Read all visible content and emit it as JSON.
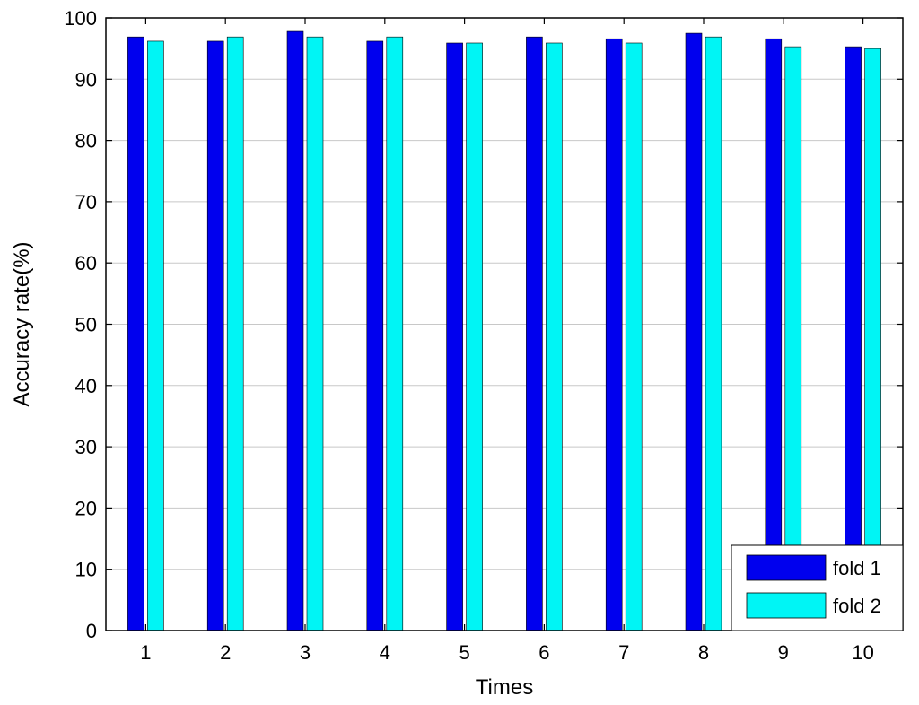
{
  "chart_data": {
    "type": "bar",
    "xlabel": "Times",
    "ylabel": "Accuracy rate(%)",
    "categories": [
      "1",
      "2",
      "3",
      "4",
      "5",
      "6",
      "7",
      "8",
      "9",
      "10"
    ],
    "ylim": [
      0,
      100
    ],
    "yticks": [
      "0",
      "10",
      "20",
      "30",
      "40",
      "50",
      "60",
      "70",
      "80",
      "90",
      "100"
    ],
    "grid": true,
    "legend_position": "bottom-right",
    "series": [
      {
        "name": "fold 1",
        "color": "#0000ee",
        "values": [
          96.9,
          96.2,
          97.8,
          96.2,
          95.9,
          96.9,
          96.6,
          97.5,
          96.6,
          95.3
        ]
      },
      {
        "name": "fold 2",
        "color": "#00f5f5",
        "values": [
          96.2,
          96.9,
          96.9,
          96.9,
          95.9,
          95.9,
          95.9,
          96.9,
          95.3,
          95.0
        ]
      }
    ]
  }
}
